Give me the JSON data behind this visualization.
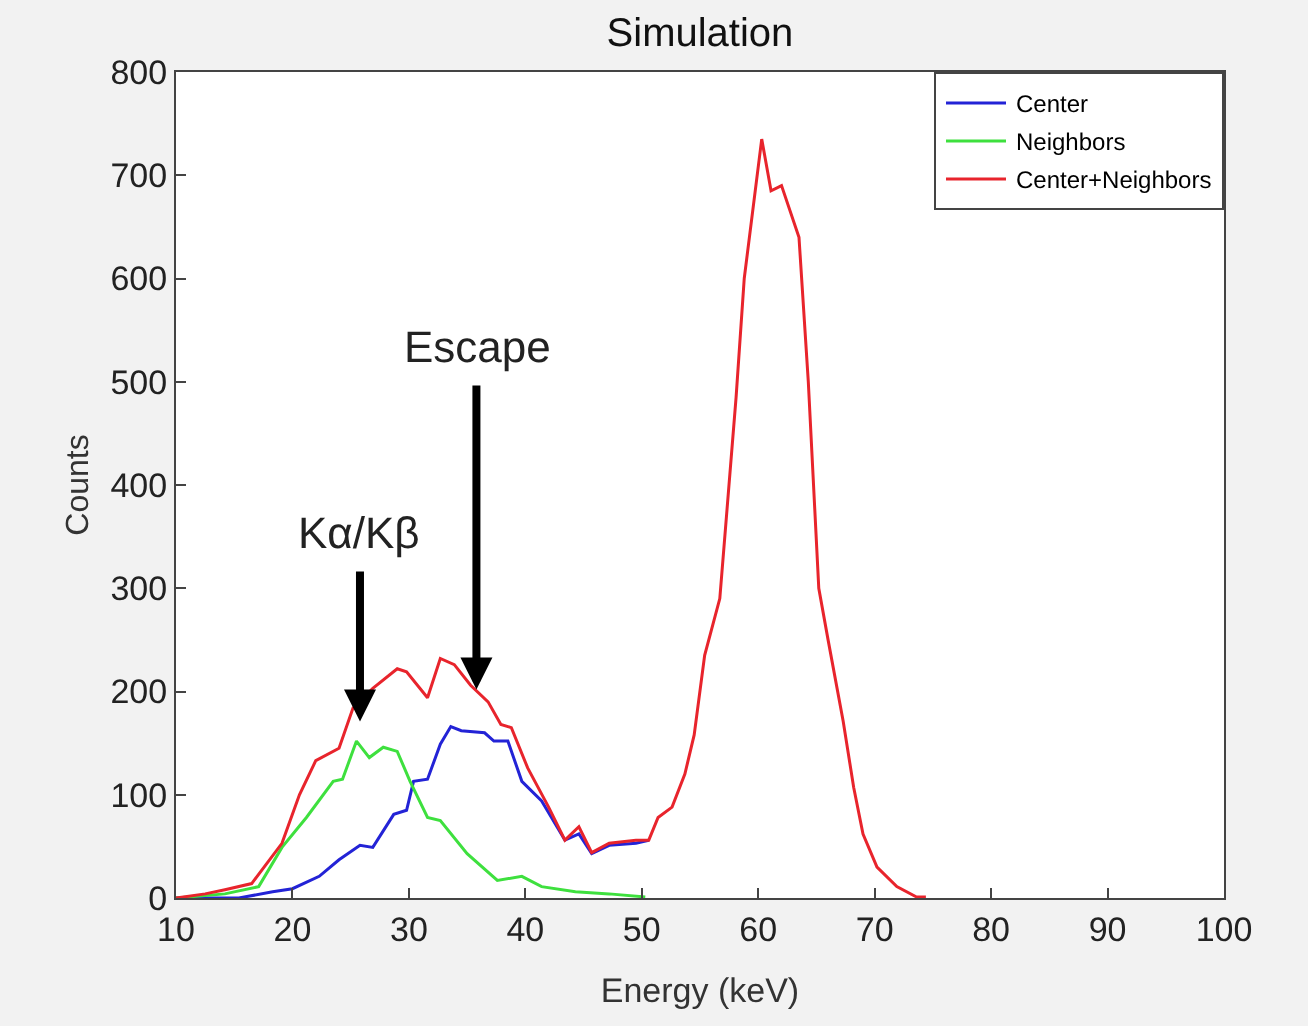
{
  "chart_data": {
    "type": "line",
    "title": "Simulation",
    "xlabel": "Energy (keV)",
    "ylabel": "Counts",
    "xlim": [
      10,
      100
    ],
    "xticks": [
      10,
      20,
      30,
      40,
      50,
      60,
      70,
      80,
      90,
      100
    ],
    "ylim": [
      0,
      800
    ],
    "yticks": [
      0,
      100,
      200,
      300,
      400,
      500,
      600,
      700,
      800
    ],
    "legend": "top right",
    "marker": "none",
    "line_style": "solid",
    "series": [
      {
        "name": "Center",
        "color": "#2323d6",
        "x": [
          10,
          15.4,
          18.3,
          20,
          22.3,
          24,
          25.8,
          26.9,
          28.7,
          29.8,
          30.4,
          31.6,
          32.7,
          33.6,
          34.5,
          36.5,
          37.3,
          38.5,
          39.7,
          41.4,
          43.4,
          44.6,
          45.7,
          47.2,
          49.5,
          50.6
        ],
        "values": [
          0,
          0,
          6,
          9,
          21,
          37,
          51,
          49,
          81,
          85,
          113,
          115,
          149,
          166,
          162,
          160,
          152,
          152,
          113,
          94,
          56,
          62,
          43,
          51,
          53,
          56
        ]
      },
      {
        "name": "Neighbors",
        "color": "#3ee03e",
        "x": [
          10,
          14.2,
          17.1,
          19.1,
          21.2,
          23.5,
          24.3,
          25.5,
          26.6,
          27.8,
          29,
          30.1,
          31.6,
          32.7,
          35,
          37.6,
          39.7,
          41.4,
          44.3,
          47.2,
          50.3
        ],
        "values": [
          0,
          4,
          11,
          49,
          78,
          113,
          115,
          152,
          136,
          146,
          142,
          113,
          78,
          75,
          43,
          17,
          21,
          11,
          6,
          4,
          1
        ]
      },
      {
        "name": "Center+Neighbors",
        "color": "#e8242c",
        "x": [
          10,
          12.5,
          14.2,
          16.5,
          19.1,
          20.6,
          22,
          24,
          25.2,
          26.9,
          29,
          29.8,
          31.6,
          32.7,
          33.9,
          35.3,
          36.8,
          37.9,
          38.8,
          40.2,
          42,
          43.4,
          44.6,
          45.7,
          47.2,
          49.5,
          50.6,
          51.4,
          52.6,
          53.7,
          54.5,
          55.4,
          56.7,
          58.1,
          58.8,
          60.3,
          61.1,
          62,
          63.5,
          64.3,
          65.2,
          66,
          67.3,
          68.2,
          69,
          70.2,
          71.9,
          73.6,
          74.4
        ],
        "values": [
          0,
          4,
          8,
          14,
          53,
          100,
          133,
          145,
          184,
          203,
          222,
          219,
          194,
          232,
          226,
          206,
          190,
          168,
          165,
          126,
          88,
          56,
          69,
          44,
          53,
          56,
          56,
          78,
          88,
          120,
          158,
          235,
          290,
          485,
          600,
          735,
          685,
          690,
          640,
          500,
          300,
          250,
          171,
          107,
          62,
          30,
          11,
          1,
          1
        ]
      }
    ],
    "annotations": [
      {
        "text": "Escape",
        "x": 35.8,
        "y": 200
      },
      {
        "text": "Kα/Kβ",
        "x": 25.8,
        "y": 169
      }
    ]
  }
}
